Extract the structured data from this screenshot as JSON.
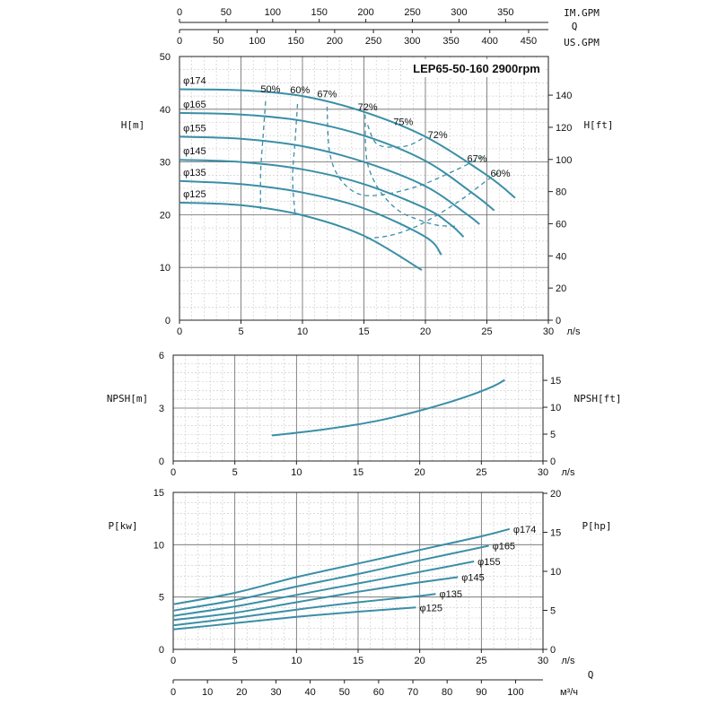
{
  "colors": {
    "curve": "#3a8fa6",
    "efficiency": "#3a8fa6",
    "grid_major": "#6a6a6a",
    "grid_fine": "#c8c8c8"
  },
  "chart_data": [
    {
      "type": "line",
      "panel": "head",
      "title": "LEP65-50-160 2900rpm",
      "xlabel": "л/s",
      "ylabel": "H[m]",
      "ylabel_right": "H[ft]",
      "xlim": [
        0,
        30
      ],
      "ylim": [
        0,
        50
      ],
      "x_ticks": [
        0,
        5,
        10,
        15,
        20,
        25,
        30
      ],
      "y_ticks": [
        0,
        10,
        20,
        30,
        40,
        50
      ],
      "right_ticks": [
        0,
        20,
        40,
        60,
        80,
        100,
        120,
        140
      ],
      "top_axis_im_gpm": {
        "label": "IM.GPM",
        "ticks": [
          0,
          50,
          100,
          150,
          200,
          250,
          300,
          350
        ]
      },
      "top_axis_q": "Q",
      "top_axis_us_gpm": {
        "label": "US.GPM",
        "ticks": [
          0,
          50,
          100,
          150,
          200,
          250,
          300,
          350,
          400,
          450
        ]
      },
      "series": [
        {
          "name": "φ174",
          "x": [
            0,
            5,
            10,
            15,
            20,
            25,
            27.3
          ],
          "y": [
            43.8,
            43.6,
            42.5,
            39.5,
            34.8,
            27.5,
            23.2
          ]
        },
        {
          "name": "φ165",
          "x": [
            0,
            5,
            10,
            15,
            20,
            24,
            25.6
          ],
          "y": [
            39.3,
            39.0,
            37.8,
            35.0,
            30.2,
            23.8,
            20.8
          ]
        },
        {
          "name": "φ155",
          "x": [
            0,
            5,
            10,
            15,
            20,
            23.3,
            24.4
          ],
          "y": [
            34.8,
            34.4,
            33.0,
            30.0,
            25.4,
            20.2,
            18.2
          ]
        },
        {
          "name": "φ145",
          "x": [
            0,
            5,
            10,
            15,
            20,
            22,
            23.1
          ],
          "y": [
            30.4,
            30.0,
            28.6,
            25.8,
            21.2,
            18.2,
            15.8
          ]
        },
        {
          "name": "φ135",
          "x": [
            0,
            5,
            10,
            15,
            20,
            21.3
          ],
          "y": [
            26.4,
            25.8,
            24.2,
            21.2,
            15.8,
            12.4
          ]
        },
        {
          "name": "φ125",
          "x": [
            0,
            5,
            10,
            15,
            19.7
          ],
          "y": [
            22.3,
            21.8,
            19.9,
            16.0,
            9.5
          ]
        }
      ],
      "efficiency_curves": [
        {
          "label": "50%",
          "x": [
            7.0,
            6.8,
            6.6,
            6.6
          ],
          "y": [
            41.5,
            35.0,
            28.0,
            21.0
          ]
        },
        {
          "label": "60%",
          "x": [
            9.6,
            9.4,
            9.2,
            9.4
          ],
          "y": [
            41.0,
            34.0,
            27.0,
            20.0
          ]
        },
        {
          "label": "67%",
          "x": [
            12.0,
            12.2,
            13.0,
            14.5,
            16.5,
            19.5,
            22.5,
            24.8
          ],
          "y": [
            40.5,
            32.0,
            27.0,
            24.0,
            23.8,
            25.5,
            28.5,
            31.2
          ]
        },
        {
          "label": "72%",
          "x": [
            15.1,
            15.2,
            15.8,
            16.8,
            18.0,
            19.5,
            21.0,
            22.5
          ],
          "y": [
            39.0,
            31.0,
            26.5,
            23.0,
            20.5,
            19.0,
            18.0,
            17.8
          ]
        },
        {
          "label": "75%",
          "x": [
            15.3,
            16.0,
            17.3,
            18.7,
            20.0
          ],
          "y": [
            37.0,
            33.5,
            32.8,
            33.2,
            34.8
          ]
        },
        {
          "label": "60%",
          "x": [
            15.2,
            17.0,
            19.0,
            21.0,
            23.0,
            25.0,
            26.0
          ],
          "y": [
            15.5,
            16.0,
            17.5,
            20.0,
            23.0,
            26.5,
            28.0
          ]
        }
      ],
      "series_labels": [
        "φ174",
        "φ165",
        "φ155",
        "φ145",
        "φ135",
        "φ125"
      ],
      "eff_labels": [
        "50%",
        "60%",
        "67%",
        "72%",
        "75%",
        "72%",
        "67%",
        "60%"
      ]
    },
    {
      "type": "line",
      "panel": "npsh",
      "xlabel": "л/s",
      "ylabel": "NPSH[m]",
      "ylabel_right": "NPSH[ft]",
      "xlim": [
        0,
        30
      ],
      "ylim": [
        0,
        6
      ],
      "x_ticks": [
        0,
        5,
        10,
        15,
        20,
        25,
        30
      ],
      "y_ticks": [
        0,
        3,
        6
      ],
      "right_ticks": [
        0,
        5,
        10,
        15
      ],
      "series": [
        {
          "x": [
            8,
            10,
            12,
            14,
            16,
            18,
            20,
            22,
            24,
            26,
            26.9
          ],
          "y": [
            1.45,
            1.6,
            1.77,
            1.97,
            2.2,
            2.5,
            2.85,
            3.25,
            3.7,
            4.25,
            4.6
          ]
        }
      ]
    },
    {
      "type": "line",
      "panel": "power",
      "xlabel": "л/s",
      "ylabel": "P[kw]",
      "ylabel_right": "P[hp]",
      "xlim": [
        0,
        30
      ],
      "ylim": [
        0,
        15
      ],
      "x_ticks": [
        0,
        5,
        10,
        15,
        20,
        25,
        30
      ],
      "y_ticks": [
        0,
        5,
        10,
        15
      ],
      "right_ticks": [
        0,
        5,
        10,
        15,
        20
      ],
      "bottom_axis_q": {
        "label": "Q",
        "unit": "м³/ч",
        "ticks": [
          0,
          10,
          20,
          30,
          40,
          50,
          60,
          70,
          80,
          90,
          100
        ]
      },
      "series": [
        {
          "name": "φ174",
          "x": [
            0,
            5,
            10,
            15,
            20,
            25,
            27.3
          ],
          "y": [
            4.3,
            5.4,
            6.9,
            8.2,
            9.5,
            10.8,
            11.5
          ]
        },
        {
          "name": "φ165",
          "x": [
            0,
            5,
            10,
            15,
            20,
            25.6
          ],
          "y": [
            3.7,
            4.7,
            6.0,
            7.2,
            8.5,
            9.9
          ]
        },
        {
          "name": "φ155",
          "x": [
            0,
            5,
            10,
            15,
            20,
            24.4
          ],
          "y": [
            3.2,
            4.1,
            5.2,
            6.3,
            7.4,
            8.4
          ]
        },
        {
          "name": "φ145",
          "x": [
            0,
            5,
            10,
            15,
            20,
            23.1
          ],
          "y": [
            2.8,
            3.5,
            4.5,
            5.5,
            6.4,
            6.9
          ]
        },
        {
          "name": "φ135",
          "x": [
            0,
            5,
            10,
            15,
            20,
            21.3
          ],
          "y": [
            2.3,
            3.0,
            3.8,
            4.5,
            5.1,
            5.3
          ]
        },
        {
          "name": "φ125",
          "x": [
            0,
            5,
            10,
            15,
            19.7
          ],
          "y": [
            1.9,
            2.5,
            3.1,
            3.6,
            4.0
          ]
        }
      ]
    }
  ]
}
